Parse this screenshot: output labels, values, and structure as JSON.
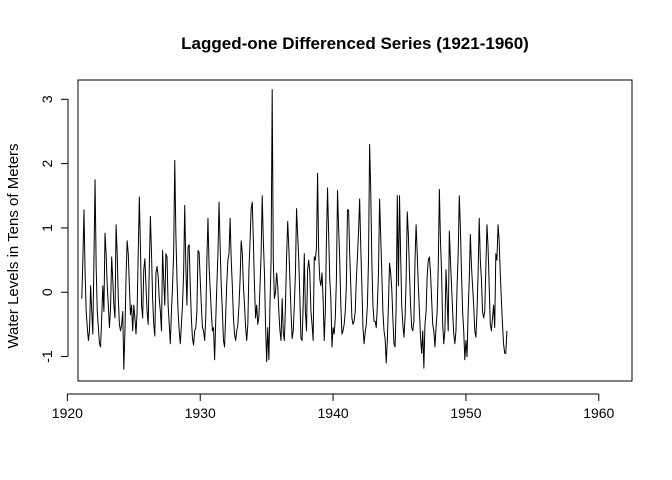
{
  "chart_data": {
    "type": "line",
    "title": "Lagged-one Differenced Series (1921-1960)",
    "xlabel": "",
    "ylabel": "Water Levels in Tens of Meters",
    "xlim": [
      1920.8,
      1962.5
    ],
    "ylim": [
      -1.38,
      3.3
    ],
    "x_ticks": [
      1920,
      1930,
      1940,
      1950,
      1960
    ],
    "x_tick_labels": [
      "1920",
      "1930",
      "1940",
      "1950",
      "1960"
    ],
    "y_ticks": [
      -1,
      0,
      1,
      2,
      3
    ],
    "y_tick_labels": [
      "-1",
      "0",
      "1",
      "2",
      "3"
    ],
    "grid": false,
    "legend": "none",
    "line_color": "#000000",
    "series": [
      {
        "x_start": 1921.0833,
        "x_step": 0.0833333,
        "values": [
          -0.1,
          0.5,
          1.28,
          0.3,
          -0.3,
          -0.55,
          -0.75,
          -0.6,
          0.1,
          -0.3,
          -0.65,
          0.5,
          1.75,
          0.4,
          -0.3,
          -0.55,
          -0.8,
          -0.85,
          -0.4,
          0.1,
          -0.3,
          0.92,
          0.6,
          0.1,
          -0.2,
          -0.55,
          -0.25,
          0.55,
          0.2,
          -0.2,
          -0.4,
          1.05,
          0.6,
          -0.1,
          -0.5,
          -0.6,
          -0.5,
          -0.3,
          -1.2,
          -0.6,
          0.25,
          0.8,
          0.6,
          0.1,
          -0.35,
          -0.2,
          -0.6,
          -0.2,
          -0.4,
          -0.65,
          -0.3,
          0.6,
          1.48,
          0.7,
          -0.2,
          -0.4,
          0.35,
          0.52,
          0.1,
          -0.3,
          -0.5,
          0.4,
          1.18,
          0.6,
          -0.1,
          -0.5,
          -0.68,
          0.3,
          0.4,
          0.25,
          -0.1,
          -0.3,
          -0.6,
          0.65,
          0.2,
          -0.2,
          0.6,
          0.55,
          -0.2,
          -0.5,
          -0.8,
          -0.3,
          0.1,
          0.6,
          2.05,
          0.9,
          0.2,
          -0.3,
          -0.6,
          -0.8,
          -0.5,
          -0.2,
          0.3,
          1.35,
          0.4,
          -0.2,
          0.7,
          0.74,
          0.1,
          -0.4,
          -0.72,
          -0.82,
          -0.6,
          -0.55,
          -0.3,
          0.65,
          0.62,
          0.2,
          -0.2,
          -0.55,
          -0.6,
          -0.75,
          -0.4,
          0.5,
          1.15,
          0.4,
          0.05,
          -0.3,
          -0.6,
          -0.55,
          -1.05,
          -0.45,
          0.1,
          0.6,
          1.4,
          0.7,
          0.1,
          -0.3,
          -0.75,
          -0.85,
          -0.35,
          0.15,
          0.5,
          0.6,
          1.15,
          0.5,
          0.1,
          -0.4,
          -0.65,
          -0.75,
          -0.6,
          -0.5,
          -0.2,
          0.2,
          0.8,
          0.6,
          0.1,
          -0.2,
          -0.55,
          -0.75,
          -0.5,
          0.35,
          0.8,
          1.3,
          1.4,
          0.8,
          0.1,
          -0.4,
          -0.2,
          -0.5,
          -0.38,
          0.1,
          0.6,
          1.5,
          0.8,
          0.3,
          -0.5,
          -1.08,
          -0.55,
          -1.05,
          -0.2,
          0.5,
          3.15,
          0.5,
          -0.1,
          0.0,
          0.3,
          0.1,
          -0.3,
          -0.6,
          -0.75,
          -0.1,
          -0.62,
          -0.75,
          -0.2,
          0.55,
          1.1,
          0.7,
          0.2,
          -0.3,
          -0.72,
          -0.6,
          -0.2,
          0.3,
          1.3,
          0.9,
          0.5,
          -0.1,
          -0.72,
          -0.75,
          -0.2,
          0.6,
          -0.3,
          -0.6,
          0.35,
          0.5,
          0.3,
          -0.3,
          -0.5,
          -0.75,
          0.55,
          0.5,
          0.7,
          1.85,
          0.6,
          0.2,
          0.1,
          0.3,
          -0.1,
          -0.75,
          -0.3,
          0.8,
          1.62,
          0.9,
          0.2,
          -0.1,
          -0.85,
          -0.55,
          -0.65,
          -0.4,
          0.2,
          1.58,
          1.0,
          0.5,
          -0.2,
          -0.65,
          -0.6,
          -0.5,
          -0.3,
          0.1,
          1.28,
          1.28,
          0.6,
          0.1,
          -0.4,
          -0.5,
          -0.45,
          -0.3,
          0.2,
          0.55,
          0.95,
          1.45,
          0.7,
          0.1,
          -0.55,
          -0.8,
          -0.62,
          -0.5,
          -0.2,
          0.5,
          2.3,
          1.6,
          0.5,
          -0.2,
          -0.45,
          -0.45,
          -0.55,
          -0.2,
          0.3,
          1.45,
          0.9,
          0.3,
          -0.3,
          -0.6,
          -0.72,
          -1.1,
          -0.75,
          -0.2,
          0.45,
          0.3,
          0.05,
          -0.4,
          -0.8,
          -0.85,
          -0.2,
          1.5,
          0.1,
          1.5,
          0.6,
          -0.2,
          -0.5,
          -0.7,
          -0.4,
          0.2,
          1.25,
          0.9,
          0.3,
          -0.2,
          -0.55,
          -0.6,
          -0.45,
          0.5,
          1.05,
          0.6,
          0.1,
          -0.3,
          -0.7,
          -0.95,
          -0.6,
          -1.18,
          -0.5,
          -0.3,
          0.25,
          0.5,
          0.55,
          0.3,
          -0.1,
          -0.5,
          -0.6,
          -0.85,
          -0.55,
          -0.3,
          0.4,
          1.6,
          0.8,
          0.3,
          -0.5,
          -0.8,
          -0.6,
          0.35,
          -0.1,
          -0.6,
          0.95,
          0.5,
          0.1,
          -0.3,
          -0.65,
          -0.8,
          -0.6,
          0.1,
          0.6,
          1.5,
          1.0,
          0.3,
          -0.3,
          -0.6,
          -1.05,
          -0.75,
          -1.0,
          -0.3,
          0.2,
          0.9,
          0.4,
          0.1,
          -0.2,
          -0.6,
          -0.7,
          -0.3,
          0.3,
          1.15,
          0.5,
          0.2,
          -0.3,
          -0.4,
          -0.3,
          0.4,
          1.05,
          0.7,
          0.1,
          -0.5,
          -0.6,
          -0.4,
          -0.2,
          -0.55,
          0.6,
          0.5,
          1.05,
          0.8,
          0.3,
          -0.1,
          -0.5,
          -0.8,
          -0.95,
          -0.95,
          -0.6
        ]
      }
    ]
  }
}
